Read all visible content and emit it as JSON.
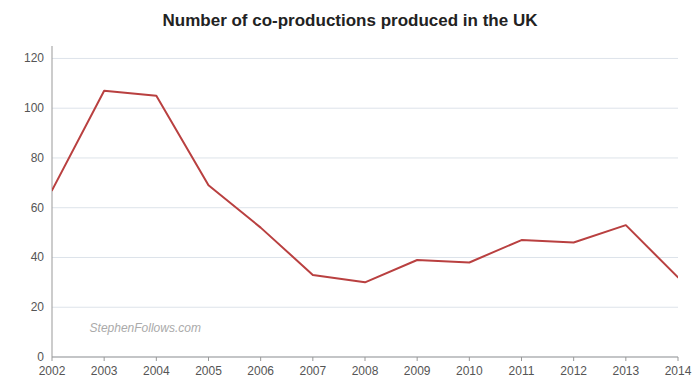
{
  "chart_data": {
    "type": "line",
    "title": "Number of co-productions produced in the UK",
    "x": [
      2002,
      2003,
      2004,
      2005,
      2006,
      2007,
      2008,
      2009,
      2010,
      2011,
      2012,
      2013,
      2014
    ],
    "values": [
      67,
      107,
      105,
      69,
      52,
      33,
      30,
      39,
      38,
      47,
      46,
      53,
      32
    ],
    "color": "#b94040",
    "xlim": [
      2002,
      2014
    ],
    "xticks": [
      2002,
      2003,
      2004,
      2005,
      2006,
      2007,
      2008,
      2009,
      2010,
      2011,
      2012,
      2013,
      2014
    ],
    "ylim": [
      0,
      125
    ],
    "yticks": [
      0,
      20,
      40,
      60,
      80,
      100,
      120
    ],
    "grid": true,
    "annotations": [
      "StephenFollows.com"
    ]
  }
}
